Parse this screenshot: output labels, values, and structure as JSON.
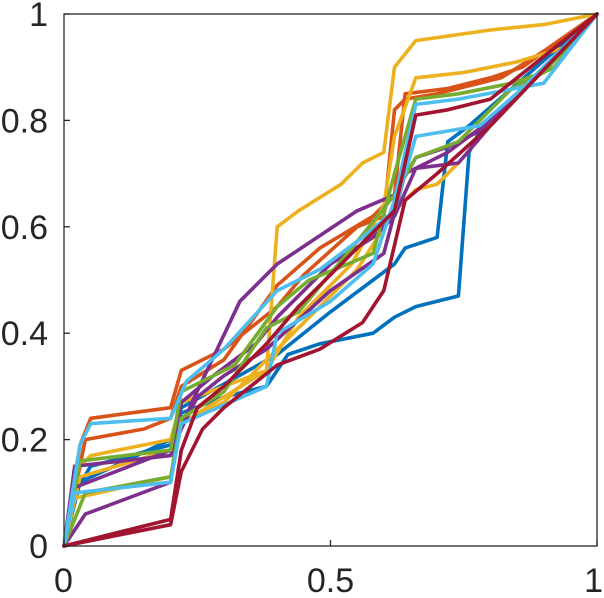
{
  "chart_data": {
    "type": "line",
    "title": "",
    "xlabel": "",
    "ylabel": "",
    "xlim": [
      0,
      1
    ],
    "ylim": [
      0,
      1
    ],
    "grid": false,
    "legend": "none",
    "x_ticks": [
      0,
      0.5,
      1
    ],
    "x_tick_labels": [
      "0",
      "0.5",
      "1"
    ],
    "y_ticks": [
      0,
      0.2,
      0.4,
      0.6,
      0.8,
      1
    ],
    "y_tick_labels": [
      "0",
      "0.2",
      "0.4",
      "0.6",
      "0.8",
      "1"
    ],
    "series": [
      {
        "color": "#0072BD",
        "x": [
          0,
          0.02,
          0.05,
          0.2,
          0.22,
          0.3,
          0.38,
          0.42,
          0.48,
          0.58,
          0.62,
          0.66,
          0.7,
          0.74,
          0.76,
          0.78,
          1
        ],
        "y": [
          0,
          0.1,
          0.15,
          0.19,
          0.25,
          0.28,
          0.3,
          0.36,
          0.38,
          0.4,
          0.43,
          0.45,
          0.46,
          0.47,
          0.74,
          0.78,
          1
        ]
      },
      {
        "color": "#0072BD",
        "x": [
          0,
          0.03,
          0.2,
          0.22,
          0.4,
          0.5,
          0.58,
          0.62,
          0.64,
          0.7,
          0.72,
          0.76,
          1
        ],
        "y": [
          0,
          0.12,
          0.2,
          0.26,
          0.36,
          0.44,
          0.5,
          0.53,
          0.56,
          0.58,
          0.76,
          0.79,
          1
        ]
      },
      {
        "color": "#D95319",
        "x": [
          0,
          0.03,
          0.05,
          0.2,
          0.22,
          0.3,
          0.4,
          0.45,
          0.55,
          0.6,
          0.62,
          0.64,
          0.7,
          0.82,
          0.9,
          1
        ],
        "y": [
          0,
          0.19,
          0.24,
          0.26,
          0.33,
          0.37,
          0.45,
          0.51,
          0.6,
          0.62,
          0.82,
          0.84,
          0.85,
          0.88,
          0.93,
          1
        ]
      },
      {
        "color": "#D95319",
        "x": [
          0,
          0.04,
          0.15,
          0.2,
          0.22,
          0.3,
          0.4,
          0.48,
          0.58,
          0.62,
          0.64,
          0.72,
          0.8,
          0.86,
          1
        ],
        "y": [
          0,
          0.2,
          0.22,
          0.24,
          0.3,
          0.35,
          0.49,
          0.56,
          0.62,
          0.66,
          0.85,
          0.86,
          0.88,
          0.9,
          1
        ]
      },
      {
        "color": "#EDB120",
        "x": [
          0,
          0.02,
          0.05,
          0.2,
          0.22,
          0.38,
          0.4,
          0.44,
          0.52,
          0.56,
          0.6,
          0.62,
          0.66,
          0.8,
          0.9,
          1
        ],
        "y": [
          0,
          0.14,
          0.17,
          0.2,
          0.27,
          0.33,
          0.6,
          0.63,
          0.68,
          0.72,
          0.74,
          0.9,
          0.95,
          0.97,
          0.98,
          1
        ]
      },
      {
        "color": "#EDB120",
        "x": [
          0,
          0.03,
          0.2,
          0.22,
          0.38,
          0.44,
          0.54,
          0.6,
          0.62,
          0.66,
          0.75,
          0.85,
          0.95,
          1
        ],
        "y": [
          0,
          0.13,
          0.18,
          0.23,
          0.33,
          0.43,
          0.53,
          0.64,
          0.77,
          0.88,
          0.89,
          0.91,
          0.94,
          1
        ]
      },
      {
        "color": "#EDB120",
        "x": [
          0,
          0.02,
          0.2,
          0.22,
          0.3,
          0.4,
          0.46,
          0.55,
          0.62,
          0.66,
          0.7,
          0.74,
          0.8,
          1
        ],
        "y": [
          0,
          0.09,
          0.13,
          0.23,
          0.27,
          0.37,
          0.43,
          0.52,
          0.63,
          0.67,
          0.68,
          0.72,
          0.79,
          1
        ]
      },
      {
        "color": "#7E2F8E",
        "x": [
          0,
          0.02,
          0.2,
          0.24,
          0.33,
          0.4,
          0.46,
          0.55,
          0.62,
          0.66,
          0.72,
          0.78,
          1
        ],
        "y": [
          0,
          0.15,
          0.17,
          0.27,
          0.46,
          0.53,
          0.57,
          0.63,
          0.66,
          0.73,
          0.75,
          0.78,
          1
        ]
      },
      {
        "color": "#7E2F8E",
        "x": [
          0,
          0.04,
          0.2,
          0.22,
          0.28,
          0.36,
          0.4,
          0.5,
          0.58,
          0.62,
          0.66,
          0.74,
          0.8,
          1
        ],
        "y": [
          0,
          0.06,
          0.12,
          0.27,
          0.32,
          0.38,
          0.43,
          0.53,
          0.58,
          0.62,
          0.71,
          0.72,
          0.79,
          1
        ]
      },
      {
        "color": "#7E2F8E",
        "x": [
          0,
          0.02,
          0.2,
          0.25,
          0.3,
          0.38,
          0.5,
          0.6,
          0.64,
          0.72,
          0.8,
          1
        ],
        "y": [
          0,
          0.11,
          0.18,
          0.28,
          0.32,
          0.37,
          0.48,
          0.55,
          0.7,
          0.74,
          0.8,
          1
        ]
      },
      {
        "color": "#77AC30",
        "x": [
          0,
          0.04,
          0.2,
          0.22,
          0.3,
          0.38,
          0.44,
          0.54,
          0.62,
          0.66,
          0.74,
          0.84,
          0.92,
          1
        ],
        "y": [
          0,
          0.1,
          0.13,
          0.24,
          0.29,
          0.41,
          0.44,
          0.56,
          0.66,
          0.73,
          0.76,
          0.86,
          0.9,
          1
        ]
      },
      {
        "color": "#77AC30",
        "x": [
          0,
          0.03,
          0.2,
          0.22,
          0.32,
          0.4,
          0.46,
          0.58,
          0.62,
          0.66,
          0.74,
          0.84,
          0.9,
          1
        ],
        "y": [
          0,
          0.16,
          0.18,
          0.29,
          0.34,
          0.45,
          0.5,
          0.55,
          0.7,
          0.84,
          0.85,
          0.87,
          0.89,
          1
        ]
      },
      {
        "color": "#4DBEEE",
        "x": [
          0,
          0.03,
          0.05,
          0.2,
          0.23,
          0.3,
          0.4,
          0.48,
          0.56,
          0.62,
          0.66,
          0.72,
          0.78,
          0.86,
          1
        ],
        "y": [
          0,
          0.19,
          0.23,
          0.24,
          0.31,
          0.37,
          0.48,
          0.52,
          0.58,
          0.63,
          0.77,
          0.78,
          0.79,
          0.86,
          1
        ]
      },
      {
        "color": "#4DBEEE",
        "x": [
          0,
          0.02,
          0.2,
          0.22,
          0.38,
          0.4,
          0.5,
          0.58,
          0.62,
          0.66,
          0.74,
          0.9,
          1
        ],
        "y": [
          0,
          0.1,
          0.12,
          0.23,
          0.3,
          0.4,
          0.46,
          0.53,
          0.65,
          0.83,
          0.84,
          0.87,
          1
        ]
      },
      {
        "color": "#A2142F",
        "x": [
          0,
          0.2,
          0.22,
          0.26,
          0.3,
          0.4,
          0.48,
          0.56,
          0.6,
          0.64,
          0.7,
          0.8,
          1
        ],
        "y": [
          0,
          0.04,
          0.14,
          0.22,
          0.26,
          0.34,
          0.37,
          0.42,
          0.48,
          0.65,
          0.7,
          0.79,
          1
        ]
      },
      {
        "color": "#A2142F",
        "x": [
          0,
          0.2,
          0.22,
          0.25,
          0.3,
          0.38,
          0.44,
          0.55,
          0.62,
          0.66,
          0.72,
          0.8,
          1
        ],
        "y": [
          0,
          0.05,
          0.18,
          0.26,
          0.3,
          0.38,
          0.45,
          0.56,
          0.63,
          0.81,
          0.82,
          0.84,
          1
        ]
      }
    ]
  }
}
